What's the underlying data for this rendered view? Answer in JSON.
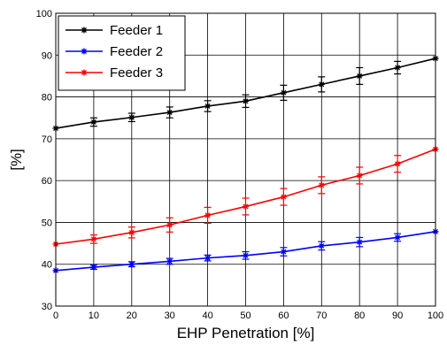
{
  "chart_data": {
    "type": "line",
    "title": "",
    "xlabel": "EHP Penetration [%]",
    "ylabel": "[%]",
    "xlim": [
      0,
      100
    ],
    "ylim": [
      30,
      100
    ],
    "x": [
      0,
      10,
      20,
      30,
      40,
      50,
      60,
      70,
      80,
      90,
      100
    ],
    "x_ticks": [
      "0",
      "10",
      "20",
      "30",
      "40",
      "50",
      "60",
      "70",
      "80",
      "90",
      "100"
    ],
    "y_ticks": [
      "30",
      "40",
      "50",
      "60",
      "70",
      "80",
      "90",
      "100"
    ],
    "grid": true,
    "legend_position": "top-left",
    "series": [
      {
        "name": "Feeder 1",
        "color": "#000000",
        "values": [
          72.5,
          74.0,
          75.1,
          76.3,
          77.8,
          79.0,
          81.0,
          83.0,
          85.0,
          87.0,
          89.2
        ],
        "error": [
          0,
          1.0,
          1.0,
          1.3,
          1.3,
          1.5,
          1.8,
          1.8,
          2.0,
          1.5,
          0
        ]
      },
      {
        "name": "Feeder 2",
        "color": "#0000ff",
        "values": [
          38.5,
          39.3,
          40.0,
          40.7,
          41.5,
          42.1,
          43.0,
          44.4,
          45.3,
          46.4,
          47.8
        ],
        "error": [
          0,
          0.5,
          0.6,
          0.7,
          0.7,
          0.9,
          1.0,
          1.0,
          1.1,
          0.9,
          0
        ]
      },
      {
        "name": "Feeder 3",
        "color": "#ff0000",
        "values": [
          44.8,
          46.0,
          47.6,
          49.4,
          51.7,
          53.8,
          56.1,
          58.9,
          61.2,
          64.0,
          67.5
        ],
        "error": [
          0,
          1.0,
          1.3,
          1.7,
          1.9,
          2.0,
          2.0,
          2.0,
          2.0,
          2.0,
          0
        ]
      }
    ]
  }
}
